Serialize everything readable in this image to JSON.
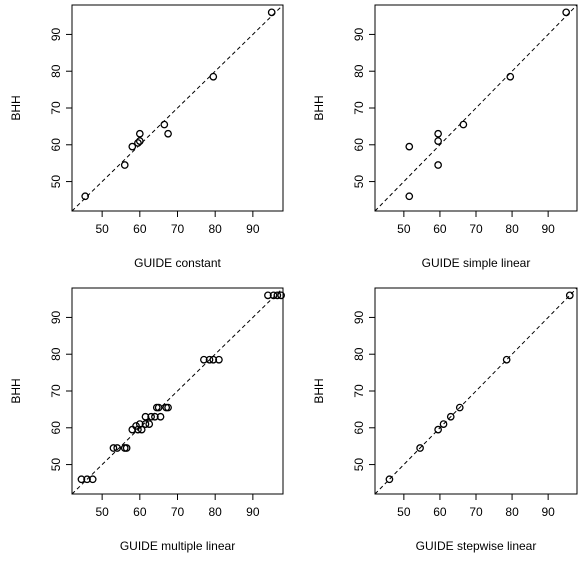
{
  "figure": {
    "background": "#ffffff",
    "axis_color": "#000000",
    "point_color": "#000000",
    "reference_line": "dashed y = x"
  },
  "chart_data": [
    {
      "type": "scatter",
      "title": "",
      "xlabel": "GUIDE constant",
      "ylabel": "BHH",
      "xlim": [
        42,
        98
      ],
      "ylim": [
        42,
        98
      ],
      "xticks": [
        50,
        60,
        70,
        80,
        90
      ],
      "yticks": [
        50,
        60,
        70,
        80,
        90
      ],
      "grid": false,
      "reference_line": "y = x",
      "points": [
        {
          "x": 45.5,
          "y": 46.0
        },
        {
          "x": 56.0,
          "y": 54.5
        },
        {
          "x": 58.0,
          "y": 59.5
        },
        {
          "x": 59.5,
          "y": 60.5
        },
        {
          "x": 60.0,
          "y": 61.0
        },
        {
          "x": 60.0,
          "y": 63.0
        },
        {
          "x": 66.5,
          "y": 65.5
        },
        {
          "x": 67.5,
          "y": 63.0
        },
        {
          "x": 79.5,
          "y": 78.5
        },
        {
          "x": 95.0,
          "y": 96.0
        }
      ]
    },
    {
      "type": "scatter",
      "title": "",
      "xlabel": "GUIDE simple linear",
      "ylabel": "BHH",
      "xlim": [
        42,
        98
      ],
      "ylim": [
        42,
        98
      ],
      "xticks": [
        50,
        60,
        70,
        80,
        90
      ],
      "yticks": [
        50,
        60,
        70,
        80,
        90
      ],
      "grid": false,
      "reference_line": "y = x",
      "points": [
        {
          "x": 51.5,
          "y": 46.0
        },
        {
          "x": 51.5,
          "y": 59.5
        },
        {
          "x": 59.5,
          "y": 54.5
        },
        {
          "x": 59.5,
          "y": 61.0
        },
        {
          "x": 59.5,
          "y": 63.0
        },
        {
          "x": 66.5,
          "y": 65.5
        },
        {
          "x": 79.5,
          "y": 78.5
        },
        {
          "x": 95.0,
          "y": 96.0
        }
      ]
    },
    {
      "type": "scatter",
      "title": "",
      "xlabel": "GUIDE multiple linear",
      "ylabel": "BHH",
      "xlim": [
        42,
        98
      ],
      "ylim": [
        42,
        98
      ],
      "xticks": [
        50,
        60,
        70,
        80,
        90
      ],
      "yticks": [
        50,
        60,
        70,
        80,
        90
      ],
      "grid": false,
      "reference_line": "y = x",
      "points": [
        {
          "x": 44.5,
          "y": 46.0
        },
        {
          "x": 46.0,
          "y": 46.0
        },
        {
          "x": 47.5,
          "y": 46.0
        },
        {
          "x": 53.0,
          "y": 54.5
        },
        {
          "x": 54.0,
          "y": 54.5
        },
        {
          "x": 56.0,
          "y": 54.5
        },
        {
          "x": 56.5,
          "y": 54.5
        },
        {
          "x": 58.0,
          "y": 59.5
        },
        {
          "x": 59.0,
          "y": 60.5
        },
        {
          "x": 59.5,
          "y": 59.5
        },
        {
          "x": 60.0,
          "y": 61.0
        },
        {
          "x": 60.5,
          "y": 59.5
        },
        {
          "x": 61.5,
          "y": 61.0
        },
        {
          "x": 61.5,
          "y": 63.0
        },
        {
          "x": 62.5,
          "y": 61.0
        },
        {
          "x": 63.0,
          "y": 63.0
        },
        {
          "x": 64.0,
          "y": 63.0
        },
        {
          "x": 64.5,
          "y": 65.5
        },
        {
          "x": 65.0,
          "y": 65.5
        },
        {
          "x": 65.5,
          "y": 63.0
        },
        {
          "x": 67.0,
          "y": 65.5
        },
        {
          "x": 67.5,
          "y": 65.5
        },
        {
          "x": 77.0,
          "y": 78.5
        },
        {
          "x": 78.5,
          "y": 78.5
        },
        {
          "x": 79.5,
          "y": 78.5
        },
        {
          "x": 81.0,
          "y": 78.5
        },
        {
          "x": 94.0,
          "y": 96.0
        },
        {
          "x": 95.5,
          "y": 96.0
        },
        {
          "x": 96.5,
          "y": 96.0
        },
        {
          "x": 97.5,
          "y": 96.0
        }
      ]
    },
    {
      "type": "scatter",
      "title": "",
      "xlabel": "GUIDE stepwise linear",
      "ylabel": "BHH",
      "xlim": [
        42,
        98
      ],
      "ylim": [
        42,
        98
      ],
      "xticks": [
        50,
        60,
        70,
        80,
        90
      ],
      "yticks": [
        50,
        60,
        70,
        80,
        90
      ],
      "grid": false,
      "reference_line": "y = x",
      "points": [
        {
          "x": 46.0,
          "y": 46.0
        },
        {
          "x": 54.5,
          "y": 54.5
        },
        {
          "x": 59.5,
          "y": 59.5
        },
        {
          "x": 61.0,
          "y": 61.0
        },
        {
          "x": 63.0,
          "y": 63.0
        },
        {
          "x": 65.5,
          "y": 65.5
        },
        {
          "x": 78.5,
          "y": 78.5
        },
        {
          "x": 96.0,
          "y": 96.0
        }
      ]
    }
  ]
}
